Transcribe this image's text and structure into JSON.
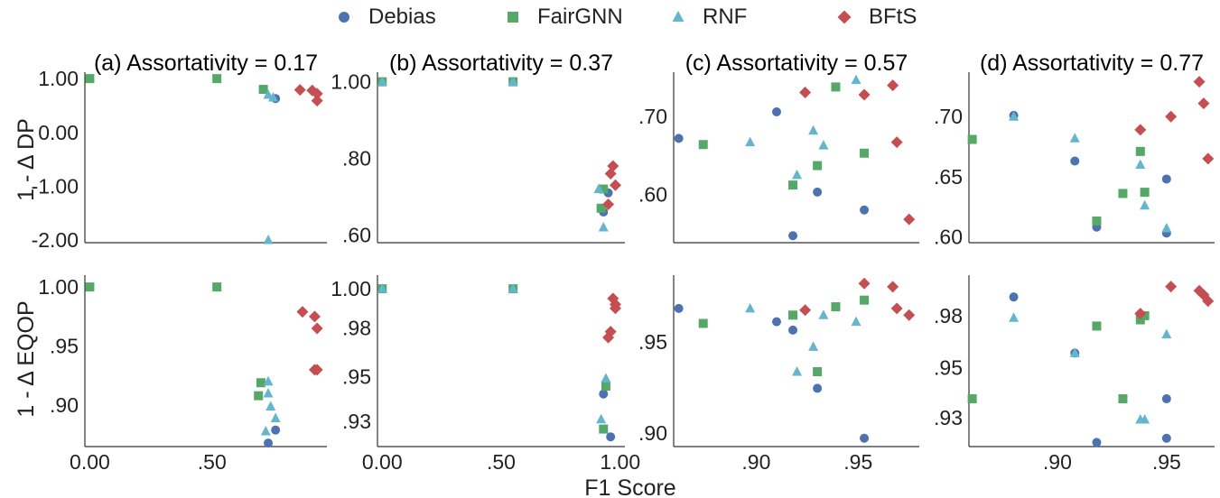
{
  "legend": [
    {
      "name": "Debias",
      "color": "#4c72b0",
      "marker": "circle"
    },
    {
      "name": "FairGNN",
      "color": "#55a868",
      "marker": "square"
    },
    {
      "name": "RNF",
      "color": "#64b5cd",
      "marker": "triangle"
    },
    {
      "name": "BFtS",
      "color": "#c44e52",
      "marker": "diamond"
    }
  ],
  "xlabel": "F1 Score",
  "row_ylabels": [
    "1 - Δ DP",
    "1 - Δ EQOP"
  ],
  "chart_data": [
    {
      "type": "scatter",
      "title": "(a) Assortativity = 0.17",
      "row": 0,
      "col": 0,
      "xlim": [
        -0.02,
        0.97
      ],
      "ylim": [
        -2.05,
        1.12
      ],
      "yticks": [
        {
          "v": 1.0,
          "label": "1.00"
        },
        {
          "v": 0.0,
          "label": "0.00"
        },
        {
          "v": -1.0,
          "label": "-1.00"
        },
        {
          "v": -2.0,
          "label": "-2.00"
        }
      ],
      "xticks": [],
      "series": [
        {
          "name": "Debias",
          "points": [
            [
              0.76,
              0.63
            ]
          ]
        },
        {
          "name": "FairGNN",
          "points": [
            [
              0.0,
              1.0
            ],
            [
              0.52,
              1.0
            ],
            [
              0.71,
              0.8
            ]
          ]
        },
        {
          "name": "RNF",
          "points": [
            [
              0.73,
              0.7
            ],
            [
              0.75,
              0.65
            ],
            [
              0.73,
              -2.0
            ]
          ]
        },
        {
          "name": "BFtS",
          "points": [
            [
              0.86,
              0.79
            ],
            [
              0.91,
              0.78
            ],
            [
              0.93,
              0.72
            ],
            [
              0.93,
              0.59
            ]
          ]
        }
      ]
    },
    {
      "type": "scatter",
      "title": "(b) Assortativity = 0.37",
      "row": 0,
      "col": 1,
      "xlim": [
        -0.02,
        1.02
      ],
      "ylim": [
        0.58,
        1.025
      ],
      "yticks": [
        {
          "v": 1.0,
          "label": "1.00"
        },
        {
          "v": 0.8,
          "label": ".80"
        },
        {
          "v": 0.6,
          "label": ".60"
        }
      ],
      "xticks": [],
      "series": [
        {
          "name": "Debias",
          "points": [
            [
              0.95,
              0.71
            ],
            [
              0.93,
              0.66
            ]
          ]
        },
        {
          "name": "FairGNN",
          "points": [
            [
              0.0,
              1.0
            ],
            [
              0.55,
              1.0
            ],
            [
              0.93,
              0.72
            ],
            [
              0.92,
              0.67
            ]
          ]
        },
        {
          "name": "RNF",
          "points": [
            [
              0.0,
              1.0
            ],
            [
              0.55,
              1.0
            ],
            [
              0.91,
              0.72
            ],
            [
              0.93,
              0.62
            ]
          ]
        },
        {
          "name": "BFtS",
          "points": [
            [
              0.97,
              0.78
            ],
            [
              0.96,
              0.76
            ],
            [
              0.98,
              0.73
            ],
            [
              0.95,
              0.68
            ]
          ]
        }
      ]
    },
    {
      "type": "scatter",
      "title": "(c) Assortativity = 0.57",
      "row": 0,
      "col": 2,
      "xlim": [
        0.8595,
        0.98
      ],
      "ylim": [
        0.538,
        0.757
      ],
      "yticks": [
        {
          "v": 0.7,
          "label": ".70"
        },
        {
          "v": 0.6,
          "label": ".60"
        }
      ],
      "xticks": [],
      "series": [
        {
          "name": "Debias",
          "points": [
            [
              0.862,
              0.672
            ],
            [
              0.91,
              0.706
            ],
            [
              0.93,
              0.603
            ],
            [
              0.953,
              0.58
            ],
            [
              0.918,
              0.547
            ]
          ]
        },
        {
          "name": "FairGNN",
          "points": [
            [
              0.874,
              0.664
            ],
            [
              0.939,
              0.738
            ],
            [
              0.953,
              0.653
            ],
            [
              0.93,
              0.637
            ],
            [
              0.918,
              0.612
            ]
          ]
        },
        {
          "name": "RNF",
          "points": [
            [
              0.897,
              0.667
            ],
            [
              0.949,
              0.747
            ],
            [
              0.928,
              0.682
            ],
            [
              0.933,
              0.663
            ],
            [
              0.92,
              0.625
            ]
          ]
        },
        {
          "name": "BFtS",
          "points": [
            [
              0.924,
              0.731
            ],
            [
              0.953,
              0.728
            ],
            [
              0.967,
              0.74
            ],
            [
              0.969,
              0.667
            ],
            [
              0.975,
              0.568
            ]
          ]
        }
      ]
    },
    {
      "type": "scatter",
      "title": "(d) Assortativity = 0.77",
      "row": 0,
      "col": 3,
      "xlim": [
        0.8595,
        0.972
      ],
      "ylim": [
        0.595,
        0.737
      ],
      "yticks": [
        {
          "v": 0.7,
          "label": ".70"
        },
        {
          "v": 0.65,
          "label": ".65"
        },
        {
          "v": 0.6,
          "label": ".60"
        }
      ],
      "xticks": [],
      "series": [
        {
          "name": "Debias",
          "points": [
            [
              0.88,
              0.701
            ],
            [
              0.908,
              0.663
            ],
            [
              0.95,
              0.648
            ],
            [
              0.918,
              0.608
            ],
            [
              0.95,
              0.603
            ]
          ]
        },
        {
          "name": "FairGNN",
          "points": [
            [
              0.861,
              0.681
            ],
            [
              0.938,
              0.671
            ],
            [
              0.918,
              0.613
            ],
            [
              0.93,
              0.636
            ],
            [
              0.94,
              0.637
            ]
          ]
        },
        {
          "name": "RNF",
          "points": [
            [
              0.88,
              0.7
            ],
            [
              0.908,
              0.682
            ],
            [
              0.938,
              0.66
            ],
            [
              0.94,
              0.626
            ],
            [
              0.95,
              0.607
            ]
          ]
        },
        {
          "name": "BFtS",
          "points": [
            [
              0.965,
              0.729
            ],
            [
              0.967,
              0.711
            ],
            [
              0.952,
              0.7
            ],
            [
              0.938,
              0.689
            ],
            [
              0.969,
              0.665
            ]
          ]
        }
      ]
    },
    {
      "type": "scatter",
      "title": "",
      "row": 1,
      "col": 0,
      "xlim": [
        -0.02,
        0.97
      ],
      "ylim": [
        0.865,
        1.01
      ],
      "yticks": [
        {
          "v": 1.0,
          "label": "1.00"
        },
        {
          "v": 0.95,
          "label": ".95"
        },
        {
          "v": 0.9,
          "label": ".90"
        }
      ],
      "xticks": [
        {
          "v": 0.0,
          "label": "0.00"
        },
        {
          "v": 0.5,
          "label": ".50"
        }
      ],
      "series": [
        {
          "name": "Debias",
          "points": [
            [
              0.76,
              0.879
            ],
            [
              0.73,
              0.868
            ]
          ]
        },
        {
          "name": "FairGNN",
          "points": [
            [
              0.0,
              1.0
            ],
            [
              0.52,
              1.0
            ],
            [
              0.7,
              0.919
            ],
            [
              0.69,
              0.908
            ]
          ]
        },
        {
          "name": "RNF",
          "points": [
            [
              0.73,
              0.92
            ],
            [
              0.73,
              0.91
            ],
            [
              0.74,
              0.899
            ],
            [
              0.76,
              0.889
            ],
            [
              0.72,
              0.878
            ]
          ]
        },
        {
          "name": "BFtS",
          "points": [
            [
              0.87,
              0.979
            ],
            [
              0.92,
              0.975
            ],
            [
              0.93,
              0.965
            ],
            [
              0.92,
              0.93
            ],
            [
              0.93,
              0.93
            ]
          ]
        }
      ]
    },
    {
      "type": "scatter",
      "title": "",
      "row": 1,
      "col": 1,
      "xlim": [
        -0.02,
        1.02
      ],
      "ylim": [
        0.919,
        1.007
      ],
      "yticks": [
        {
          "v": 1.0,
          "label": "1.00"
        },
        {
          "v": 0.98,
          "label": ".98"
        },
        {
          "v": 0.955,
          "label": ".95"
        },
        {
          "v": 0.932,
          "label": ".93"
        }
      ],
      "xticks": [
        {
          "v": 0.0,
          "label": "0.00"
        },
        {
          "v": 0.5,
          "label": ".50"
        },
        {
          "v": 1.0,
          "label": "1.00"
        }
      ],
      "series": [
        {
          "name": "Debias",
          "points": [
            [
              0.93,
              0.946
            ],
            [
              0.96,
              0.924
            ]
          ]
        },
        {
          "name": "FairGNN",
          "points": [
            [
              0.0,
              1.0
            ],
            [
              0.55,
              1.0
            ],
            [
              0.94,
              0.95
            ],
            [
              0.93,
              0.928
            ]
          ]
        },
        {
          "name": "RNF",
          "points": [
            [
              0.0,
              1.0
            ],
            [
              0.55,
              1.0
            ],
            [
              0.94,
              0.954
            ],
            [
              0.92,
              0.933
            ]
          ]
        },
        {
          "name": "BFtS",
          "points": [
            [
              0.97,
              0.995
            ],
            [
              0.98,
              0.992
            ],
            [
              0.98,
              0.99
            ],
            [
              0.96,
              0.978
            ],
            [
              0.95,
              0.975
            ]
          ]
        }
      ]
    },
    {
      "type": "scatter",
      "title": "",
      "row": 1,
      "col": 2,
      "xlim": [
        0.8595,
        0.98
      ],
      "ylim": [
        0.89,
        0.993
      ],
      "yticks": [
        {
          "v": 0.953,
          "label": ".95"
        },
        {
          "v": 0.898,
          "label": ".90"
        }
      ],
      "xticks": [
        {
          "v": 0.9,
          "label": ".90"
        },
        {
          "v": 0.95,
          "label": ".95"
        }
      ],
      "series": [
        {
          "name": "Debias",
          "points": [
            [
              0.862,
              0.973
            ],
            [
              0.91,
              0.965
            ],
            [
              0.918,
              0.96
            ],
            [
              0.93,
              0.925
            ],
            [
              0.953,
              0.895
            ]
          ]
        },
        {
          "name": "FairGNN",
          "points": [
            [
              0.874,
              0.964
            ],
            [
              0.918,
              0.969
            ],
            [
              0.939,
              0.974
            ],
            [
              0.953,
              0.978
            ],
            [
              0.93,
              0.935
            ]
          ]
        },
        {
          "name": "RNF",
          "points": [
            [
              0.897,
              0.973
            ],
            [
              0.928,
              0.95
            ],
            [
              0.933,
              0.969
            ],
            [
              0.949,
              0.965
            ],
            [
              0.92,
              0.935
            ]
          ]
        },
        {
          "name": "BFtS",
          "points": [
            [
              0.924,
              0.972
            ],
            [
              0.953,
              0.988
            ],
            [
              0.967,
              0.986
            ],
            [
              0.969,
              0.973
            ],
            [
              0.975,
              0.969
            ]
          ]
        }
      ]
    },
    {
      "type": "scatter",
      "title": "",
      "row": 1,
      "col": 3,
      "xlim": [
        0.8595,
        0.972
      ],
      "ylim": [
        0.917,
        0.9995
      ],
      "yticks": [
        {
          "v": 0.98,
          "label": ".98"
        },
        {
          "v": 0.955,
          "label": ".95"
        },
        {
          "v": 0.931,
          "label": ".93"
        }
      ],
      "xticks": [
        {
          "v": 0.9,
          "label": ".90"
        },
        {
          "v": 0.95,
          "label": ".95"
        }
      ],
      "series": [
        {
          "name": "Debias",
          "points": [
            [
              0.88,
              0.989
            ],
            [
              0.908,
              0.962
            ],
            [
              0.95,
              0.94
            ],
            [
              0.918,
              0.919
            ],
            [
              0.95,
              0.921
            ]
          ]
        },
        {
          "name": "FairGNN",
          "points": [
            [
              0.861,
              0.94
            ],
            [
              0.938,
              0.978
            ],
            [
              0.94,
              0.98
            ],
            [
              0.918,
              0.975
            ],
            [
              0.93,
              0.94
            ]
          ]
        },
        {
          "name": "RNF",
          "points": [
            [
              0.88,
              0.979
            ],
            [
              0.908,
              0.962
            ],
            [
              0.938,
              0.93
            ],
            [
              0.94,
              0.93
            ],
            [
              0.95,
              0.971
            ]
          ]
        },
        {
          "name": "BFtS",
          "points": [
            [
              0.952,
              0.994
            ],
            [
              0.965,
              0.992
            ],
            [
              0.967,
              0.99
            ],
            [
              0.969,
              0.987
            ],
            [
              0.938,
              0.981
            ]
          ]
        }
      ]
    }
  ]
}
